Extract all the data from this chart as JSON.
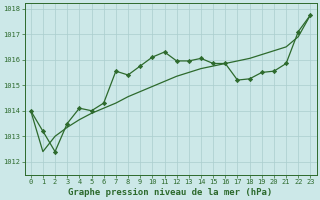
{
  "x": [
    0,
    1,
    2,
    3,
    4,
    5,
    6,
    7,
    8,
    9,
    10,
    11,
    12,
    13,
    14,
    15,
    16,
    17,
    18,
    19,
    20,
    21,
    22,
    23
  ],
  "y_line1": [
    1014.0,
    1013.2,
    1012.4,
    1013.5,
    1014.1,
    1014.0,
    1014.3,
    1015.55,
    1015.4,
    1015.75,
    1016.1,
    1016.3,
    1015.95,
    1015.95,
    1016.05,
    1015.85,
    1015.85,
    1015.2,
    1015.25,
    1015.5,
    1015.55,
    1015.85,
    1017.1,
    1017.75
  ],
  "y_line2": [
    1014.0,
    1012.4,
    1013.0,
    1013.35,
    1013.65,
    1013.9,
    1014.1,
    1014.3,
    1014.55,
    1014.75,
    1014.95,
    1015.15,
    1015.35,
    1015.5,
    1015.65,
    1015.75,
    1015.85,
    1015.95,
    1016.05,
    1016.2,
    1016.35,
    1016.5,
    1016.9,
    1017.75
  ],
  "line_color": "#2d6a2d",
  "bg_color": "#cce8e8",
  "grid_color": "#aacece",
  "title": "Graphe pression niveau de la mer (hPa)",
  "ylim": [
    1011.5,
    1018.2
  ],
  "xlim": [
    -0.5,
    23.5
  ],
  "yticks": [
    1012,
    1013,
    1014,
    1015,
    1016,
    1017,
    1018
  ],
  "xticks": [
    0,
    1,
    2,
    3,
    4,
    5,
    6,
    7,
    8,
    9,
    10,
    11,
    12,
    13,
    14,
    15,
    16,
    17,
    18,
    19,
    20,
    21,
    22,
    23
  ],
  "marker": "D",
  "marker_size": 2.2,
  "linewidth": 0.9,
  "title_fontsize": 6.5,
  "tick_fontsize": 5.0
}
